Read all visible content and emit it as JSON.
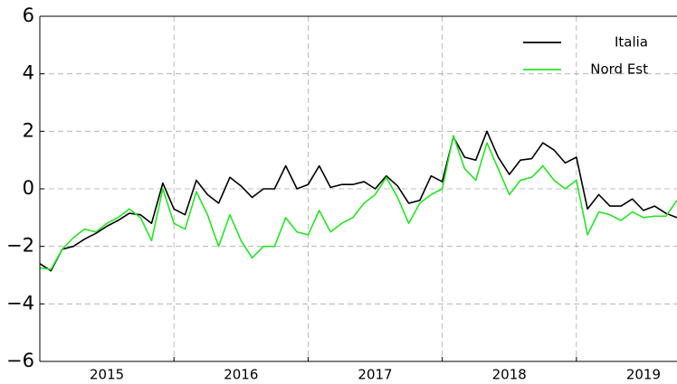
{
  "chart_data": {
    "type": "line",
    "x": [
      2015,
      2015.083,
      2015.167,
      2015.25,
      2015.333,
      2015.417,
      2015.5,
      2015.583,
      2015.667,
      2015.75,
      2015.833,
      2015.917,
      2016,
      2016.083,
      2016.167,
      2016.25,
      2016.333,
      2016.417,
      2016.5,
      2016.583,
      2016.667,
      2016.75,
      2016.833,
      2016.917,
      2017,
      2017.083,
      2017.167,
      2017.25,
      2017.333,
      2017.417,
      2017.5,
      2017.583,
      2017.667,
      2017.75,
      2017.833,
      2017.917,
      2018,
      2018.083,
      2018.167,
      2018.25,
      2018.333,
      2018.417,
      2018.5,
      2018.583,
      2018.667,
      2018.75,
      2018.833,
      2018.917,
      2019,
      2019.083,
      2019.167,
      2019.25,
      2019.333,
      2019.417,
      2019.5,
      2019.583,
      2019.667,
      2019.75
    ],
    "series": [
      {
        "name": "Italia",
        "color": "#000000",
        "values": [
          -2.6,
          -2.85,
          -2.1,
          -2.0,
          -1.75,
          -1.55,
          -1.3,
          -1.1,
          -0.85,
          -0.9,
          -1.2,
          0.2,
          -0.7,
          -0.9,
          0.3,
          -0.2,
          -0.5,
          0.4,
          0.1,
          -0.3,
          0.0,
          0.0,
          0.8,
          0.0,
          0.15,
          0.8,
          0.05,
          0.15,
          0.15,
          0.25,
          0.0,
          0.45,
          0.1,
          -0.5,
          -0.4,
          0.45,
          0.25,
          1.8,
          1.1,
          1.0,
          2.0,
          1.1,
          0.5,
          1.0,
          1.05,
          1.6,
          1.35,
          0.9,
          1.1,
          -0.7,
          -0.2,
          -0.6,
          -0.6,
          -0.35,
          -0.75,
          -0.6,
          -0.85,
          -1.0
        ]
      },
      {
        "name": "Nord Est",
        "color": "#22e622",
        "values": [
          -2.75,
          -2.8,
          -2.1,
          -1.7,
          -1.4,
          -1.5,
          -1.2,
          -1.0,
          -0.7,
          -1.0,
          -1.8,
          0.0,
          -1.2,
          -1.4,
          -0.1,
          -0.9,
          -2.0,
          -0.9,
          -1.8,
          -2.4,
          -2.0,
          -2.0,
          -1.0,
          -1.5,
          -1.6,
          -0.75,
          -1.5,
          -1.2,
          -1.0,
          -0.5,
          -0.2,
          0.4,
          -0.3,
          -1.2,
          -0.5,
          -0.2,
          0.0,
          1.85,
          0.7,
          0.3,
          1.6,
          0.7,
          -0.2,
          0.3,
          0.4,
          0.8,
          0.3,
          0.0,
          0.3,
          -1.6,
          -0.8,
          -0.9,
          -1.1,
          -0.8,
          -1.0,
          -0.95,
          -0.95,
          -0.4
        ]
      }
    ],
    "xlim": [
      2015,
      2019.75
    ],
    "xticks": [
      {
        "value": 2015.5,
        "label": "2015"
      },
      {
        "value": 2016.5,
        "label": "2016"
      },
      {
        "value": 2017.5,
        "label": "2017"
      },
      {
        "value": 2018.5,
        "label": "2018"
      },
      {
        "value": 2019.5,
        "label": "2019"
      }
    ],
    "xgrid": [
      2016,
      2017,
      2018,
      2019
    ],
    "ylim": [
      -6,
      6
    ],
    "yticks": [
      {
        "value": -6,
        "label": "−6"
      },
      {
        "value": -4,
        "label": "−4"
      },
      {
        "value": -2,
        "label": "−2"
      },
      0,
      2,
      4,
      6
    ],
    "grid": true,
    "legend": "upper right"
  }
}
